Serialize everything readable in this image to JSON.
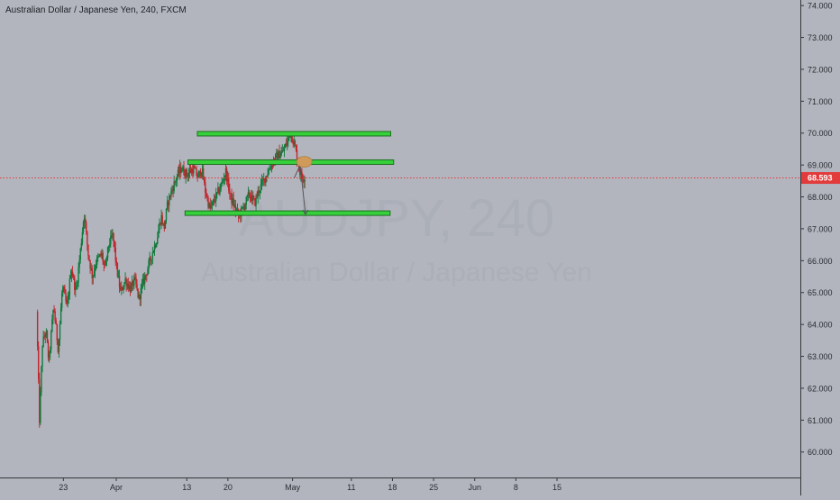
{
  "header": {
    "symbol_title": "Australian Dollar / Japanese Yen, 240, FXCM"
  },
  "watermark": {
    "ticker": "AUDJPY, 240",
    "name": "Australian Dollar / Japanese Yen"
  },
  "current_price": {
    "label": "68.593",
    "value": 68.593,
    "color": "#e23b3b"
  },
  "colors": {
    "background": "#b2b5be",
    "zone": "#36d13a",
    "up_candle": "#0f7a3c",
    "down_candle": "#c2242a",
    "marker": "#cf9a5a",
    "arrow": "#555555"
  },
  "chart_data": {
    "type": "candlestick",
    "title": "Australian Dollar / Japanese Yen, 240, FXCM",
    "ylim": [
      59.45,
      74.1
    ],
    "y_ticks": [
      {
        "value": 60,
        "label": "60.000"
      },
      {
        "value": 61,
        "label": "61.000"
      },
      {
        "value": 62,
        "label": "62.000"
      },
      {
        "value": 63,
        "label": "63.000"
      },
      {
        "value": 64,
        "label": "64.000"
      },
      {
        "value": 65,
        "label": "65.000"
      },
      {
        "value": 66,
        "label": "66.000"
      },
      {
        "value": 67,
        "label": "67.000"
      },
      {
        "value": 68,
        "label": "68.000"
      },
      {
        "value": 69,
        "label": "69.000"
      },
      {
        "value": 70,
        "label": "70.000"
      },
      {
        "value": 71,
        "label": "71.000"
      },
      {
        "value": 72,
        "label": "72.000"
      },
      {
        "value": 73,
        "label": "73.000"
      },
      {
        "value": 74,
        "label": "74.000"
      }
    ],
    "x_ticks": [
      {
        "label": "23",
        "day": -9
      },
      {
        "label": "Apr",
        "day": 0
      },
      {
        "label": "13",
        "day": 12
      },
      {
        "label": "20",
        "day": 19
      },
      {
        "label": "May",
        "day": 30
      },
      {
        "label": "11",
        "day": 40
      },
      {
        "label": "18",
        "day": 47
      },
      {
        "label": "25",
        "day": 54
      },
      {
        "label": "Jun",
        "day": 61
      },
      {
        "label": "8",
        "day": 68
      },
      {
        "label": "15",
        "day": 75
      }
    ],
    "price_path": [
      [
        -13.4,
        64.4
      ],
      [
        -12.9,
        61.0
      ],
      [
        -12.4,
        63.4
      ],
      [
        -11.8,
        63.8
      ],
      [
        -11.3,
        62.8
      ],
      [
        -10.5,
        64.6
      ],
      [
        -9.7,
        63.2
      ],
      [
        -9.0,
        65.2
      ],
      [
        -8.2,
        64.5
      ],
      [
        -7.5,
        65.8
      ],
      [
        -6.7,
        65.0
      ],
      [
        -6.0,
        66.2
      ],
      [
        -5.3,
        67.5
      ],
      [
        -4.6,
        66.2
      ],
      [
        -3.9,
        65.5
      ],
      [
        -3.2,
        66.0
      ],
      [
        -2.3,
        66.2
      ],
      [
        -1.8,
        65.7
      ],
      [
        -1.1,
        66.5
      ],
      [
        -0.4,
        66.8
      ],
      [
        0.2,
        65.8
      ],
      [
        0.9,
        65.0
      ],
      [
        1.7,
        65.4
      ],
      [
        2.6,
        65.1
      ],
      [
        3.3,
        65.4
      ],
      [
        4.0,
        64.8
      ],
      [
        4.7,
        65.3
      ],
      [
        5.6,
        65.8
      ],
      [
        6.4,
        66.3
      ],
      [
        7.1,
        66.7
      ],
      [
        7.8,
        67.4
      ],
      [
        8.3,
        67.0
      ],
      [
        8.9,
        67.8
      ],
      [
        9.6,
        68.2
      ],
      [
        10.4,
        68.6
      ],
      [
        11.2,
        68.9
      ],
      [
        12.2,
        68.7
      ],
      [
        13.3,
        68.9
      ],
      [
        14.1,
        68.6
      ],
      [
        14.7,
        68.9
      ],
      [
        15.3,
        68.2
      ],
      [
        16.1,
        67.6
      ],
      [
        17.1,
        68.0
      ],
      [
        17.9,
        68.3
      ],
      [
        18.8,
        68.8
      ],
      [
        19.6,
        68.0
      ],
      [
        20.5,
        67.6
      ],
      [
        21.0,
        67.4
      ],
      [
        21.9,
        67.7
      ],
      [
        22.8,
        68.1
      ],
      [
        23.7,
        67.8
      ],
      [
        24.4,
        68.2
      ],
      [
        25.2,
        68.5
      ],
      [
        26.0,
        68.8
      ],
      [
        26.8,
        69.1
      ],
      [
        27.6,
        69.3
      ],
      [
        28.5,
        69.4
      ],
      [
        29.2,
        69.7
      ],
      [
        29.8,
        70.0
      ],
      [
        30.4,
        69.7
      ],
      [
        31.0,
        69.2
      ],
      [
        31.5,
        68.7
      ],
      [
        32.2,
        68.6
      ]
    ],
    "horizontal_zones": [
      {
        "value": 69.98,
        "day_start": 13.8,
        "day_end": 46.7
      },
      {
        "value": 69.09,
        "day_start": 12.2,
        "day_end": 47.2
      },
      {
        "value": 67.49,
        "day_start": 11.7,
        "day_end": 46.6
      }
    ],
    "annotations": {
      "marker": {
        "day": 32.0,
        "value": 69.1
      },
      "arrow_path": [
        [
          30.3,
          68.6
        ],
        [
          31.3,
          69.0
        ],
        [
          32.2,
          67.45
        ]
      ]
    },
    "grid": false,
    "legend": "none"
  }
}
